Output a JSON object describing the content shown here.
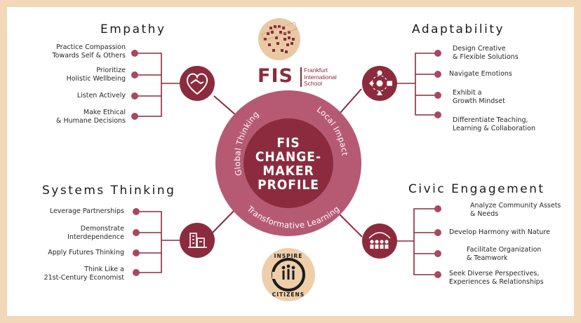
{
  "logo": {
    "acronym": "FIS",
    "school_name": "Frankfurt\nInternational\nSchool"
  },
  "center": {
    "title": "FIS\nCHANGE-\nMAKER\nPROFILE",
    "ring_labels": {
      "left": "Global Thinking",
      "right": "Local Impact",
      "bottom": "Transformative Learning"
    }
  },
  "sections": {
    "empathy": {
      "heading": "Empathy",
      "icon": "heart-handshake-icon",
      "items": [
        "Practice Compassion\nTowards Self & Others",
        "Prioritize\nHolistic Wellbeing",
        "Listen Actively",
        "Make Ethical\n& Humane Decisions"
      ]
    },
    "adaptability": {
      "heading": "Adaptability",
      "icon": "adaptable-shapes-icon",
      "items": [
        "Design Creative\n& Flexible Solutions",
        "Navigate Emotions",
        "Exhibit a\nGrowth Mindset",
        "Differentiate Teaching,\nLearning & Collaboration"
      ]
    },
    "systems_thinking": {
      "heading": "Systems Thinking",
      "icon": "city-buildings-icon",
      "items": [
        "Leverage Partnerships",
        "Demonstrate\nInterdependence",
        "Apply Futures Thinking",
        "Think Like a\n21st-Century Economist"
      ]
    },
    "civic_engagement": {
      "heading": "Civic Engagement",
      "icon": "community-people-icon",
      "items": [
        "Analyze Community Assets\n& Needs",
        "Develop Harmony with Nature",
        "Facilitate Organization\n& Teamwork",
        "Seek Diverse Perspectives,\nExperiences & Relationships"
      ]
    }
  },
  "badge": {
    "top_text": "INSPIRE",
    "bottom_text": "CITIZENS"
  },
  "colors": {
    "frame": "#f2d7b8",
    "dark_maroon": "#8c2b3d",
    "ring": "#b65a74",
    "light_rose": "#d07d93",
    "dot_outer": "#a8485f",
    "badge_fill": "#efcfa9"
  }
}
